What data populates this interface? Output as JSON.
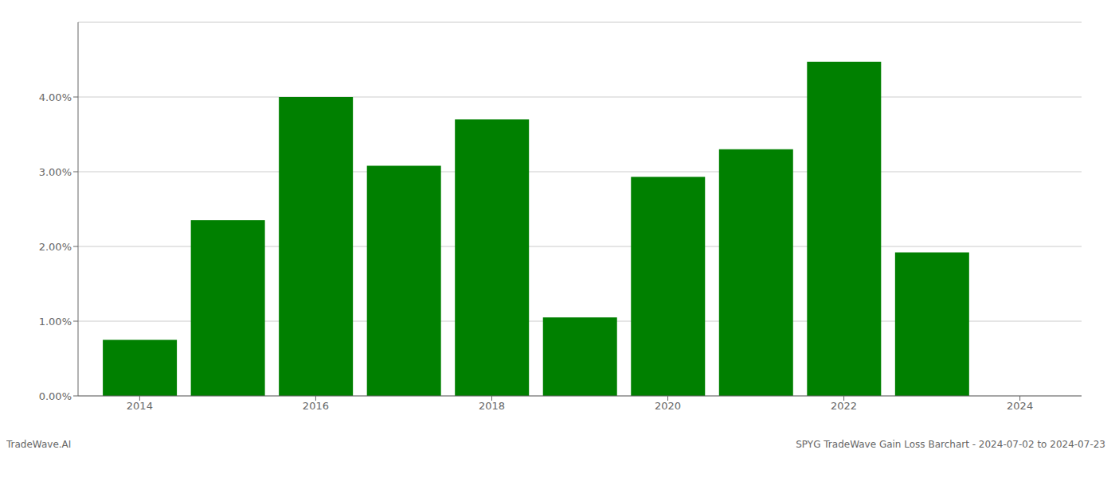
{
  "chart_data": {
    "type": "bar",
    "title": "SPYG TradeWave Gain Loss Barchart - 2024-07-02 to 2024-07-23",
    "annotations": [
      "TradeWave.AI"
    ],
    "x": [
      2014,
      2015,
      2016,
      2017,
      2018,
      2019,
      2020,
      2021,
      2022,
      2023
    ],
    "values": [
      0.0075,
      0.0235,
      0.04,
      0.0308,
      0.037,
      0.0105,
      0.0293,
      0.033,
      0.0447,
      0.0192
    ],
    "color": "#008000",
    "xlim": [
      2013.3,
      2024.7
    ],
    "xticks": [
      2014,
      2016,
      2018,
      2020,
      2022,
      2024
    ],
    "ylim": [
      0,
      0.05
    ],
    "yticks": [
      {
        "value": 0.0,
        "label": "0.00%"
      },
      {
        "value": 0.01,
        "label": "1.00%"
      },
      {
        "value": 0.02,
        "label": "2.00%"
      },
      {
        "value": 0.03,
        "label": "3.00%"
      },
      {
        "value": 0.04,
        "label": "4.00%"
      }
    ],
    "grid": true
  }
}
